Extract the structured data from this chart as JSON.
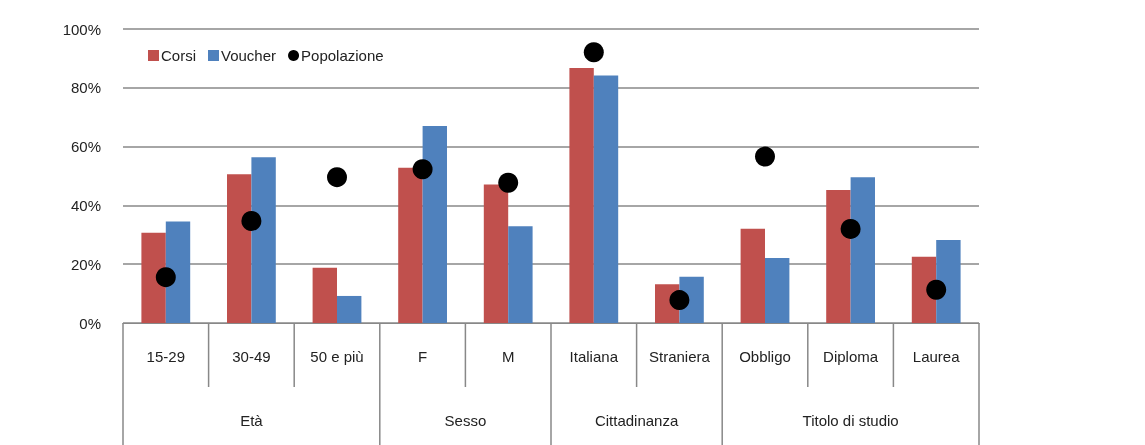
{
  "chart_data": {
    "type": "bar",
    "categories": [
      "15-29",
      "30-49",
      "50 e più",
      "F",
      "M",
      "Italiana",
      "Straniera",
      "Obbligo",
      "Diploma",
      "Laurea"
    ],
    "series": [
      {
        "name": "Corsi",
        "color": "#c0504d",
        "values": [
          30.7,
          50.6,
          18.8,
          52.8,
          47.1,
          86.7,
          13.2,
          32.1,
          45.2,
          22.5
        ]
      },
      {
        "name": "Voucher",
        "color": "#4f81bd",
        "values": [
          34.5,
          56.4,
          9.2,
          67.0,
          32.9,
          84.2,
          15.7,
          22.1,
          49.6,
          28.2
        ]
      },
      {
        "name": "Popolazione",
        "type": "scatter",
        "color": "#000000",
        "marker": "circle",
        "x": [
          "15-29",
          "30-49",
          "50 e più",
          "F",
          "M",
          "Italiana",
          "Straniera",
          "Obbligo",
          "Diploma",
          "Laurea"
        ],
        "values": [
          15.6,
          34.7,
          49.6,
          52.3,
          47.7,
          92.1,
          7.8,
          56.6,
          32.0,
          11.3
        ]
      }
    ],
    "annotations": [
      "Età",
      "Sesso",
      "Cittadinanza",
      "Titolo di studio"
    ],
    "ylim": [
      0,
      100
    ],
    "yticks": [
      {
        "value": 0,
        "label": "0%"
      },
      {
        "value": 20,
        "label": "20%"
      },
      {
        "value": 40,
        "label": "40%"
      },
      {
        "value": 60,
        "label": "60%"
      },
      {
        "value": 80,
        "label": "80%"
      },
      {
        "value": 100,
        "label": "100%"
      }
    ],
    "grid": "y",
    "legend": "top left"
  }
}
